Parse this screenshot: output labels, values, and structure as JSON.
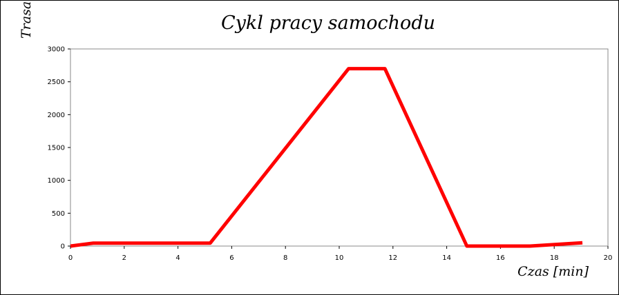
{
  "chart_data": {
    "type": "line",
    "title": "Cykl pracy samochodu",
    "x_label": "Czas [min]",
    "y_label": "Trasa",
    "x": [
      0,
      0.85,
      5.2,
      10.35,
      11.7,
      14.75,
      17.1,
      19.05
    ],
    "series": [
      {
        "color": "#ff0000",
        "values": [
          0,
          45,
          45,
          2700,
          2700,
          0,
          0,
          50
        ]
      }
    ],
    "xlim": [
      0,
      20
    ],
    "xticks": [
      0,
      2,
      4,
      6,
      8,
      10,
      12,
      14,
      16,
      18,
      20
    ],
    "ylim": [
      0,
      3000
    ],
    "yticks": [
      0,
      500,
      1000,
      1500,
      2000,
      2500,
      3000
    ],
    "grid": false
  }
}
